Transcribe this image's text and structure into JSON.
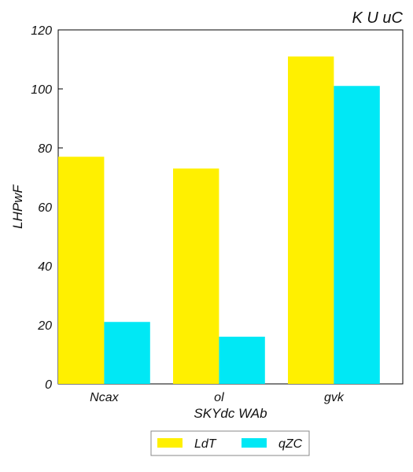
{
  "chart_data": {
    "type": "bar",
    "title": "K U uC",
    "xlabel": "SKYdc WAb",
    "ylabel": "LHPwF",
    "categories": [
      "Ncax",
      "ol",
      "gvk"
    ],
    "series": [
      {
        "name": "LdT",
        "color": "#FFF000",
        "values": [
          77,
          73,
          111
        ]
      },
      {
        "name": "qZC",
        "color": "#00E8F5",
        "values": [
          21,
          16,
          101
        ]
      }
    ],
    "ylim": [
      0,
      120
    ],
    "yticks": [
      0,
      20,
      40,
      60,
      80,
      100,
      120
    ],
    "grid": false,
    "legend_position": "bottom-center"
  }
}
